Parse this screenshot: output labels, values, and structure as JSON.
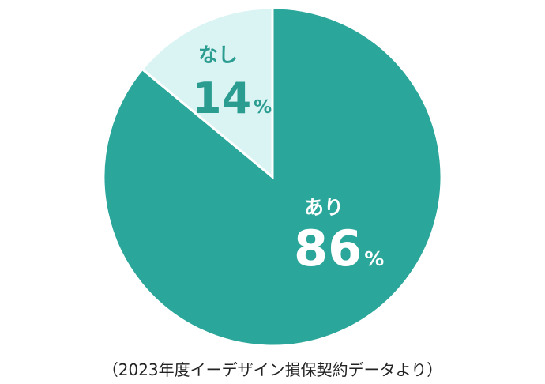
{
  "chart_data": {
    "type": "pie",
    "title": "",
    "slices": [
      {
        "label": "あり",
        "value": 86,
        "value_text": "86",
        "unit": "%",
        "color": "#2aa69a",
        "text_color": "#ffffff"
      },
      {
        "label": "なし",
        "value": 14,
        "value_text": "14",
        "unit": "%",
        "color": "#daf3f3",
        "text_color": "#2a9c90"
      }
    ],
    "start_angle_deg": 0,
    "direction": "clockwise",
    "legend": "none",
    "slice_stroke_color": "#ffffff"
  },
  "caption": "（2023年度イーデザイン損保契約データより）"
}
